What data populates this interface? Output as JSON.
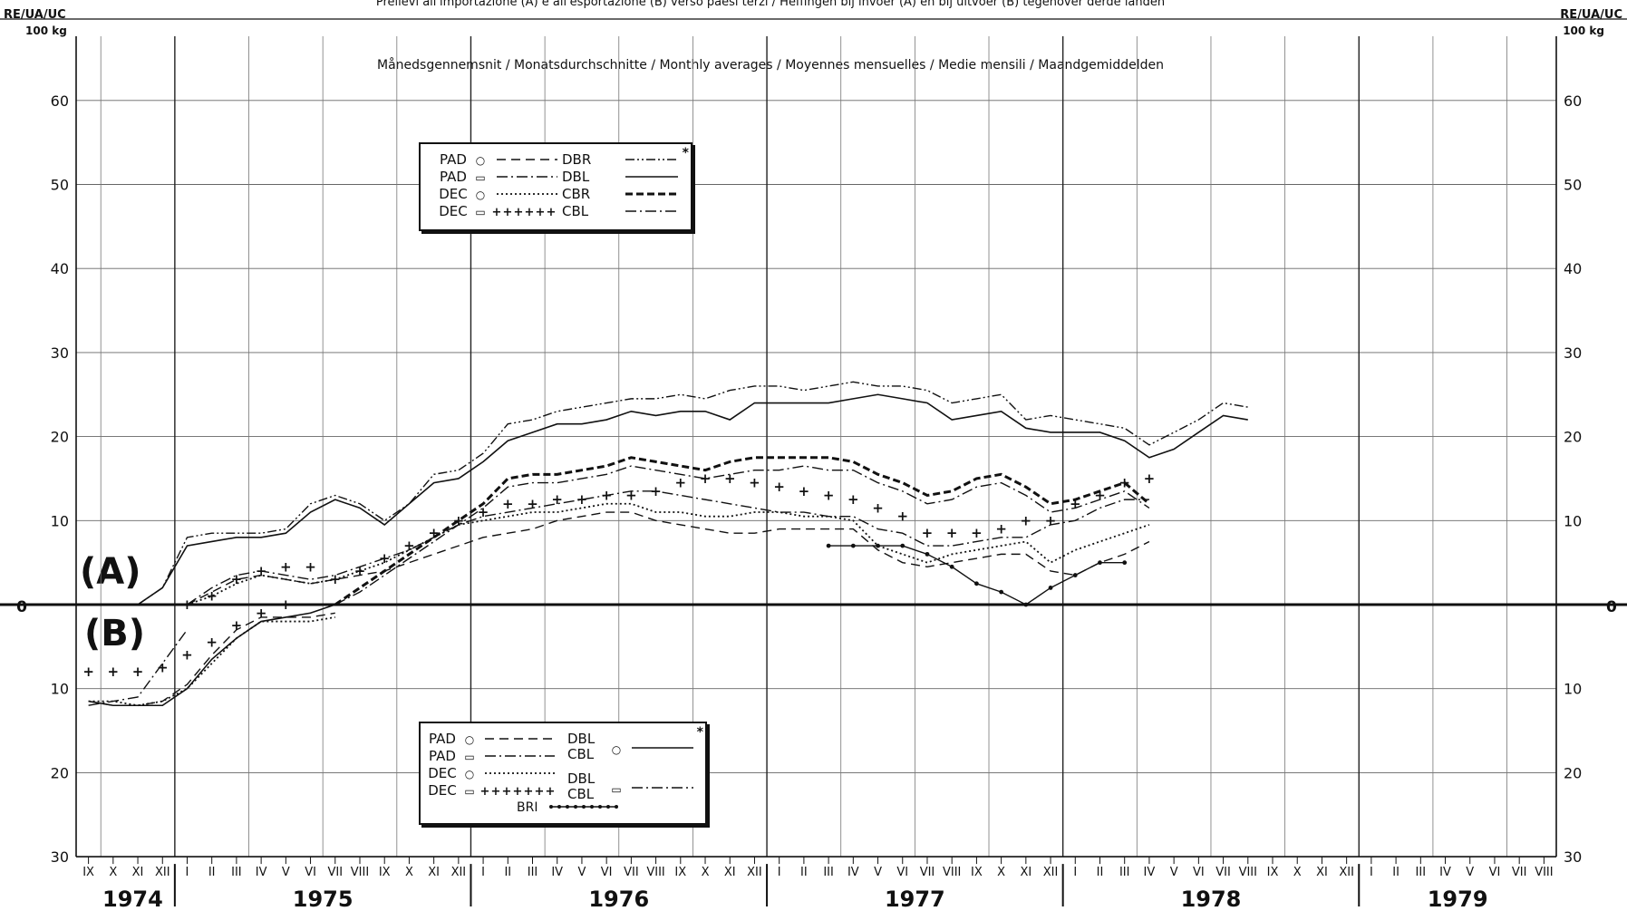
{
  "chart_data": {
    "type": "line",
    "title": "Prelievi all'importazione (A) e all'esportazione (B) verso paesi terzi / Heffingen bij invoer (A) en bij uitvoer (B) tegenover derde landen",
    "subtitle": "Månedsgennemsnit / Monatsdurchschnitte / Monthly averages / Moyennes mensuelles / Medie mensili / Maandgemiddelden",
    "ylabel_left": "RE/UA/UC",
    "ylabel_left_unit": "100 kg",
    "ylabel_right": "RE/UA/UC",
    "ylabel_right_unit": "100 kg",
    "ylim_top": [
      0,
      65
    ],
    "ylim_bottom": [
      0,
      30
    ],
    "yticks_top": [
      0,
      10,
      20,
      30,
      40,
      50,
      60
    ],
    "yticks_bottom": [
      10,
      20,
      30
    ],
    "zero_label": "0",
    "grid": true,
    "section_labels": [
      "(A)",
      "(B)"
    ],
    "years": [
      {
        "label": "1974",
        "months": [
          "IX",
          "X",
          "XI",
          "XII"
        ]
      },
      {
        "label": "1975",
        "months": [
          "I",
          "II",
          "III",
          "IV",
          "V",
          "VI",
          "VII",
          "VIII",
          "IX",
          "X",
          "XI",
          "XII"
        ]
      },
      {
        "label": "1976",
        "months": [
          "I",
          "II",
          "III",
          "IV",
          "V",
          "VI",
          "VII",
          "VIII",
          "IX",
          "X",
          "XI",
          "XII"
        ]
      },
      {
        "label": "1977",
        "months": [
          "I",
          "II",
          "III",
          "IV",
          "V",
          "VI",
          "VII",
          "VIII",
          "IX",
          "X",
          "XI",
          "XII"
        ]
      },
      {
        "label": "1978",
        "months": [
          "I",
          "II",
          "III",
          "IV",
          "V",
          "VI",
          "VII",
          "VIII",
          "IX",
          "X",
          "XI",
          "XII"
        ]
      },
      {
        "label": "1979",
        "months": [
          "I",
          "II",
          "III",
          "IV",
          "V",
          "VI",
          "VII",
          "VIII"
        ]
      }
    ],
    "legend_top": {
      "marker": "*",
      "left": [
        {
          "label": "PAD",
          "symbol": "○",
          "style": "dashed"
        },
        {
          "label": "PAD",
          "symbol": "▭",
          "style": "dashdot"
        },
        {
          "label": "DEC",
          "symbol": "○",
          "style": "dotted"
        },
        {
          "label": "DEC",
          "symbol": "▭",
          "style": "plus"
        }
      ],
      "right": [
        {
          "label": "DBR",
          "style": "dashdotdot"
        },
        {
          "label": "DBL",
          "style": "solid"
        },
        {
          "label": "CBR",
          "style": "heavydash"
        },
        {
          "label": "CBL",
          "style": "dashdot"
        }
      ]
    },
    "legend_bottom": {
      "marker": "*",
      "left": [
        {
          "label": "PAD",
          "symbol": "○",
          "style": "dashed"
        },
        {
          "label": "PAD",
          "symbol": "▭",
          "style": "dashdot"
        },
        {
          "label": "DEC",
          "symbol": "○",
          "style": "dotted"
        },
        {
          "label": "DEC",
          "symbol": "▭",
          "style": "plus"
        }
      ],
      "right": [
        {
          "label": "DBL CBL",
          "symbol": "○",
          "style": "solid"
        },
        {
          "label": "DBL CBL",
          "symbol": "▭",
          "style": "dashdot"
        }
      ],
      "extra": {
        "label": "BRI",
        "style": "dotsolid"
      }
    },
    "series_top": [
      {
        "name": "DBR",
        "style": "dashdotdot",
        "start": 2,
        "values": [
          0,
          2,
          8,
          8.5,
          8.5,
          8.5,
          9,
          12,
          13,
          12,
          10,
          12,
          15.5,
          16,
          18,
          21.5,
          22,
          23,
          23.5,
          24,
          24.5,
          24.5,
          25,
          24.5,
          25.5,
          26,
          26,
          25.5,
          26,
          26.5,
          26,
          26,
          25.5,
          24,
          24.5,
          25,
          22,
          22.5,
          22,
          21.5,
          21,
          19,
          20.5,
          22,
          24,
          23.5
        ]
      },
      {
        "name": "DBL",
        "style": "solid",
        "start": 2,
        "values": [
          0,
          2,
          7,
          7.5,
          8,
          8,
          8.5,
          11,
          12.5,
          11.5,
          9.5,
          12,
          14.5,
          15,
          17,
          19.5,
          20.5,
          21.5,
          21.5,
          22,
          23,
          22.5,
          23,
          23,
          22,
          24,
          24,
          24,
          24,
          24.5,
          25,
          24.5,
          24,
          22,
          22.5,
          23,
          21,
          20.5,
          20.5,
          20.5,
          19.5,
          17.5,
          18.5,
          20.5,
          22.5,
          22
        ]
      },
      {
        "name": "CBR",
        "style": "heavydash",
        "start": 10,
        "values": [
          0,
          2,
          4,
          6,
          8,
          10,
          12,
          15,
          15.5,
          15.5,
          16,
          16.5,
          17.5,
          17,
          16.5,
          16,
          17,
          17.5,
          17.5,
          17.5,
          17.5,
          17,
          15.5,
          14.5,
          13,
          13.5,
          15,
          15.5,
          14,
          12,
          12.5,
          13.5,
          14.5,
          12
        ]
      },
      {
        "name": "CBL",
        "style": "dashdot",
        "start": 10,
        "values": [
          0,
          1.5,
          3.5,
          5.5,
          7.5,
          9.5,
          11.5,
          14,
          14.5,
          14.5,
          15,
          15.5,
          16.5,
          16,
          15.5,
          15,
          15.5,
          16,
          16,
          16.5,
          16,
          16,
          14.5,
          13.5,
          12,
          12.5,
          14,
          14.5,
          13,
          11,
          11.5,
          12.5,
          13.5,
          11.5
        ]
      },
      {
        "name": "PAD ○",
        "style": "dashed",
        "start": 4,
        "values": [
          0,
          1.5,
          3,
          3.5,
          3,
          2.5,
          3,
          3.5,
          4,
          5,
          6,
          7,
          8,
          8.5,
          9,
          10,
          10.5,
          11,
          11,
          10,
          9.5,
          9,
          8.5,
          8.5,
          9,
          9,
          9,
          9,
          6.5,
          5,
          4.5,
          5,
          5.5,
          6,
          6,
          4,
          3.5,
          5,
          6,
          7.5
        ]
      },
      {
        "name": "PAD ▭",
        "style": "dashdot",
        "start": 4,
        "values": [
          0,
          2,
          3.5,
          4,
          3.5,
          3,
          3.5,
          4.5,
          5.5,
          6.5,
          8,
          9.5,
          10.5,
          11,
          11.5,
          12,
          12.5,
          13,
          13.5,
          13.5,
          13,
          12.5,
          12,
          11.5,
          11,
          11,
          10.5,
          10.5,
          9,
          8.5,
          7,
          7,
          7.5,
          8,
          8,
          9.5,
          10,
          11.5,
          12.5,
          12.5
        ]
      },
      {
        "name": "DEC ○",
        "style": "dotted",
        "start": 4,
        "values": [
          0,
          1,
          2.5,
          3.5,
          3,
          2.5,
          3,
          4,
          5,
          6.5,
          8,
          9.5,
          10,
          10.5,
          11,
          11,
          11.5,
          12,
          12,
          11,
          11,
          10.5,
          10.5,
          11,
          11,
          10.5,
          10.5,
          10,
          7,
          6,
          5,
          6,
          6.5,
          7,
          7.5,
          5,
          6.5,
          7.5,
          8.5,
          9.5
        ]
      },
      {
        "name": "DEC ▭",
        "style": "plus",
        "start": 4,
        "values": [
          0,
          1,
          3,
          4,
          4.5,
          4.5,
          3,
          4,
          5.5,
          7,
          8.5,
          10,
          11,
          12,
          12,
          12.5,
          12.5,
          13,
          13,
          13.5,
          14.5,
          15,
          15,
          14.5,
          14,
          13.5,
          13,
          12.5,
          11.5,
          10.5,
          8.5,
          8.5,
          8.5,
          9,
          10,
          10,
          12,
          13,
          14.5,
          15
        ]
      },
      {
        "name": "BRI",
        "style": "dotsolid",
        "start": 30,
        "values": [
          7,
          7,
          7,
          7,
          6,
          4.5,
          2.5,
          1.5,
          0,
          2,
          3.5,
          5,
          5
        ]
      }
    ],
    "series_bottom": [
      {
        "name": "DBL CBL ○",
        "style": "solid",
        "start": 0,
        "values": [
          11.5,
          12,
          12,
          12,
          10,
          6.5,
          4,
          2,
          1.5,
          1,
          0
        ]
      },
      {
        "name": "DBL CBL ▭",
        "style": "dashdot",
        "start": 0,
        "values": [
          12,
          11.5,
          11,
          7,
          3
        ]
      },
      {
        "name": "DEC ▭",
        "style": "plus",
        "start": 0,
        "values": [
          8,
          8,
          8,
          7.5,
          6,
          4.5,
          2.5,
          1,
          0
        ]
      },
      {
        "name": "PAD ○",
        "style": "dashed",
        "start": 0,
        "values": [
          11.5,
          12,
          12,
          11.5,
          9.5,
          6,
          3,
          1.5,
          1.5,
          1.5,
          1
        ]
      },
      {
        "name": "DEC ○",
        "style": "dotted",
        "start": 0,
        "values": [
          11.5,
          11.5,
          12,
          11.5,
          10,
          7,
          4,
          2,
          2,
          2,
          1.5
        ]
      }
    ]
  }
}
